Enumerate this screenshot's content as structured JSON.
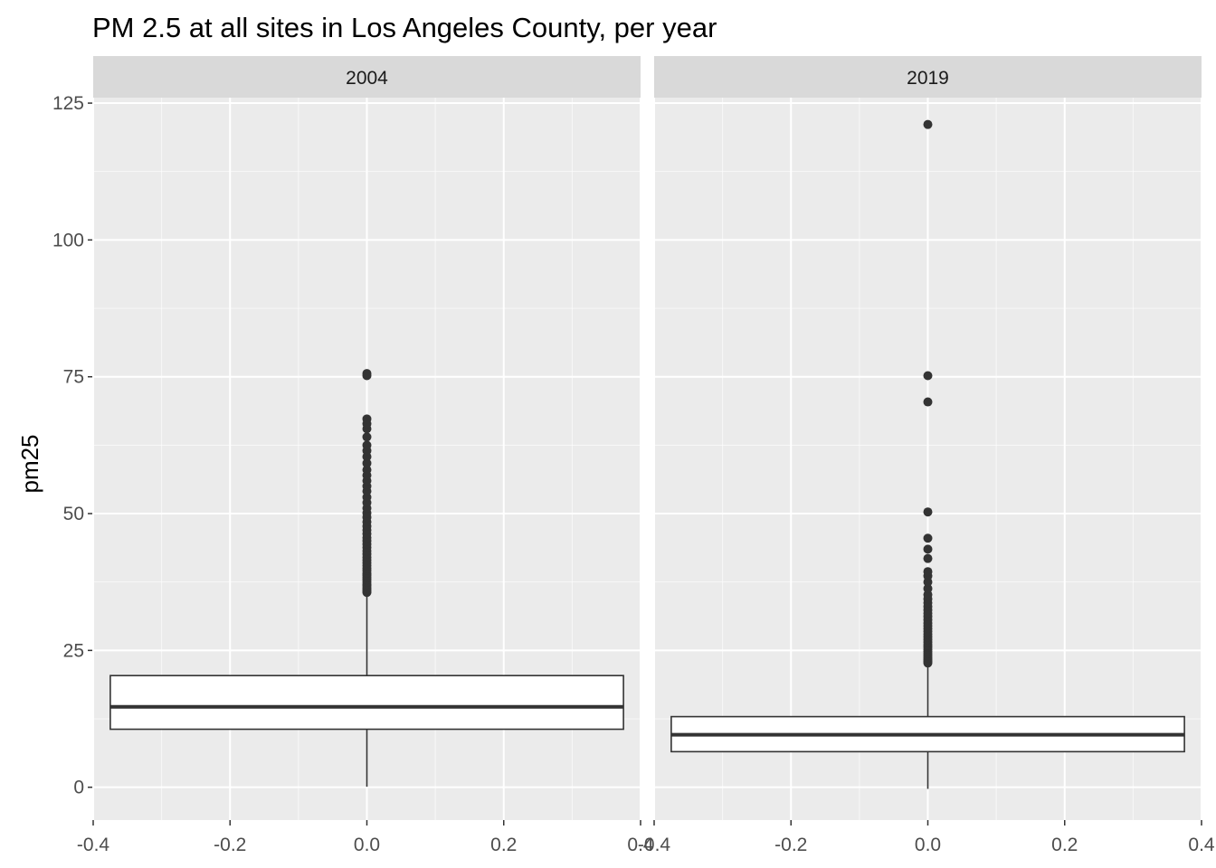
{
  "chart_data": {
    "type": "box",
    "title": "PM 2.5 at all sites in Los Angeles County, per year",
    "xlabel": "",
    "ylabel": "pm25",
    "xlim": [
      -0.4,
      0.4
    ],
    "ylim": [
      -6,
      126
    ],
    "x_ticks": [
      -0.4,
      -0.2,
      0.0,
      0.2,
      0.4
    ],
    "x_tick_labels": [
      "-0.4",
      "-0.2",
      "0.0",
      "0.2",
      "0.4"
    ],
    "y_ticks": [
      0,
      25,
      50,
      75,
      100,
      125
    ],
    "y_tick_labels": [
      "0",
      "25",
      "50",
      "75",
      "100",
      "125"
    ],
    "grid": true,
    "panels": [
      {
        "label": "2004",
        "box": {
          "xmin": -0.375,
          "xmax": 0.375,
          "lower_whisker": 0.1,
          "q1": 10.6,
          "median": 14.7,
          "q3": 20.4,
          "upper_whisker": 35.3
        },
        "outliers": [
          35.6,
          35.8,
          36.1,
          36.4,
          36.8,
          37.1,
          37.5,
          37.9,
          38.3,
          38.7,
          39.1,
          39.6,
          40.0,
          40.5,
          41.0,
          41.5,
          42.0,
          42.6,
          43.2,
          43.8,
          44.4,
          45.0,
          45.6,
          46.3,
          47.0,
          47.7,
          48.5,
          49.3,
          50.1,
          51.0,
          52.0,
          53.0,
          54.1,
          55.0,
          56.0,
          57.0,
          58.0,
          59.2,
          60.4,
          61.5,
          62.5,
          64.0,
          65.5,
          66.4,
          67.3,
          75.2,
          75.6
        ]
      },
      {
        "label": "2019",
        "box": {
          "xmin": -0.375,
          "xmax": 0.375,
          "lower_whisker": -0.3,
          "q1": 6.5,
          "median": 9.6,
          "q3": 12.9,
          "upper_whisker": 22.4
        },
        "outliers": [
          22.7,
          23.0,
          23.3,
          23.6,
          24.0,
          24.4,
          24.8,
          25.2,
          25.6,
          26.0,
          26.5,
          27.0,
          27.5,
          28.0,
          28.5,
          29.0,
          29.5,
          30.0,
          30.6,
          31.2,
          31.8,
          32.4,
          33.0,
          33.7,
          34.4,
          35.2,
          36.3,
          37.5,
          38.6,
          39.4,
          41.8,
          43.5,
          45.5,
          50.3,
          70.4,
          75.2,
          121.1
        ]
      }
    ],
    "colors": {
      "panel_background": "#ebebeb",
      "strip_background": "#d9d9d9",
      "grid_major": "#ffffff",
      "box_fill": "#ffffff",
      "box_line": "#333333",
      "point": "#333333"
    }
  }
}
